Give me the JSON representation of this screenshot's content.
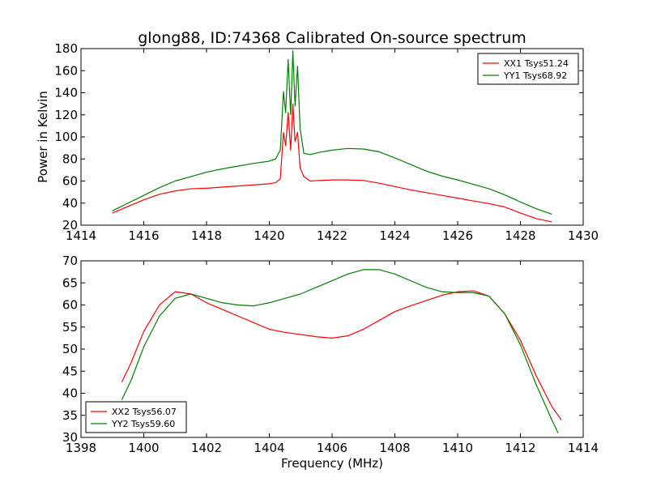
{
  "figure": {
    "title": "glong88, ID:74368 Calibrated On-source spectrum"
  },
  "chart_data": [
    {
      "type": "line",
      "title": "glong88, ID:74368 Calibrated On-source spectrum",
      "xlabel": "",
      "ylabel": "Power in Kelvin",
      "xlim": [
        1414,
        1430
      ],
      "ylim": [
        20,
        180
      ],
      "xticks": [
        1414,
        1416,
        1418,
        1420,
        1422,
        1424,
        1426,
        1428,
        1430
      ],
      "yticks": [
        20,
        40,
        60,
        80,
        100,
        120,
        140,
        160,
        180
      ],
      "grid": false,
      "legend_position": "top-right",
      "series": [
        {
          "name": "XX1 Tsys51.24",
          "color": "#ff0000",
          "x": [
            1415.0,
            1415.5,
            1416.0,
            1416.5,
            1417.0,
            1417.5,
            1418.0,
            1418.5,
            1419.0,
            1419.5,
            1420.0,
            1420.2,
            1420.35,
            1420.45,
            1420.52,
            1420.6,
            1420.68,
            1420.75,
            1420.82,
            1420.9,
            1420.98,
            1421.1,
            1421.3,
            1421.6,
            1422.0,
            1422.5,
            1423.0,
            1423.5,
            1424.0,
            1424.5,
            1425.0,
            1425.5,
            1426.0,
            1426.5,
            1427.0,
            1427.5,
            1428.0,
            1428.5,
            1429.0
          ],
          "y": [
            31,
            37,
            43,
            48,
            51,
            53,
            53.5,
            54.5,
            55.5,
            56.5,
            57.5,
            58.5,
            62,
            104,
            92,
            122,
            88,
            130,
            96,
            104,
            72,
            64,
            60,
            60.5,
            61,
            61,
            60.5,
            58,
            55,
            52,
            49.5,
            47,
            44.5,
            42,
            39.5,
            36.5,
            31,
            26,
            23
          ]
        },
        {
          "name": "YY1 Tsys68.92",
          "color": "#008000",
          "x": [
            1415.0,
            1415.5,
            1416.0,
            1416.5,
            1417.0,
            1417.5,
            1418.0,
            1418.5,
            1419.0,
            1419.5,
            1420.0,
            1420.2,
            1420.35,
            1420.45,
            1420.52,
            1420.6,
            1420.68,
            1420.75,
            1420.82,
            1420.9,
            1420.98,
            1421.1,
            1421.3,
            1421.6,
            1422.0,
            1422.5,
            1423.0,
            1423.5,
            1424.0,
            1424.5,
            1425.0,
            1425.5,
            1426.0,
            1426.5,
            1427.0,
            1427.5,
            1428.0,
            1428.5,
            1429.0
          ],
          "y": [
            33,
            40,
            47,
            54,
            60,
            64,
            68,
            71,
            73.5,
            76,
            78,
            80,
            88,
            141,
            122,
            170,
            120,
            178,
            128,
            164,
            108,
            85,
            84,
            86,
            88,
            89.5,
            89,
            86.5,
            81,
            75,
            69,
            64.5,
            61,
            57,
            53,
            47.5,
            41,
            35,
            30
          ]
        }
      ]
    },
    {
      "type": "line",
      "title": "",
      "xlabel": "Frequency (MHz)",
      "ylabel": "",
      "xlim": [
        1398,
        1414
      ],
      "ylim": [
        30,
        70
      ],
      "xticks": [
        1398,
        1400,
        1402,
        1404,
        1406,
        1408,
        1410,
        1412,
        1414
      ],
      "yticks": [
        30,
        35,
        40,
        45,
        50,
        55,
        60,
        65,
        70
      ],
      "grid": false,
      "legend_position": "bottom-left",
      "series": [
        {
          "name": "XX2 Tsys56.07",
          "color": "#ff0000",
          "x": [
            1399.3,
            1399.6,
            1400.0,
            1400.5,
            1401.0,
            1401.5,
            1402.0,
            1402.5,
            1403.0,
            1403.5,
            1404.0,
            1404.5,
            1405.0,
            1405.5,
            1406.0,
            1406.5,
            1407.0,
            1407.5,
            1408.0,
            1408.5,
            1409.0,
            1409.5,
            1410.0,
            1410.5,
            1411.0,
            1411.5,
            1412.0,
            1412.5,
            1413.0,
            1413.3
          ],
          "y": [
            42.5,
            47,
            54,
            60,
            63,
            62.5,
            60.5,
            59,
            57.5,
            56,
            54.5,
            53.8,
            53.3,
            52.8,
            52.5,
            53,
            54.5,
            56.5,
            58.5,
            59.8,
            61,
            62.2,
            63,
            63.2,
            62,
            58,
            52,
            44,
            37,
            34
          ]
        },
        {
          "name": "YY2 Tsys59.60",
          "color": "#008000",
          "x": [
            1399.3,
            1399.6,
            1400.0,
            1400.5,
            1401.0,
            1401.5,
            1402.0,
            1402.5,
            1403.0,
            1403.5,
            1404.0,
            1404.5,
            1405.0,
            1405.5,
            1406.0,
            1406.5,
            1407.0,
            1407.5,
            1408.0,
            1408.5,
            1409.0,
            1409.5,
            1410.0,
            1410.5,
            1411.0,
            1411.5,
            1412.0,
            1412.5,
            1413.0,
            1413.2
          ],
          "y": [
            38.5,
            43,
            50.5,
            57.5,
            61.5,
            62.5,
            61.5,
            60.5,
            60,
            59.8,
            60.5,
            61.5,
            62.5,
            64,
            65.5,
            67,
            68,
            68,
            67,
            65.5,
            64,
            63,
            62.8,
            62.8,
            62,
            58,
            51,
            42,
            34,
            31
          ]
        }
      ]
    }
  ]
}
